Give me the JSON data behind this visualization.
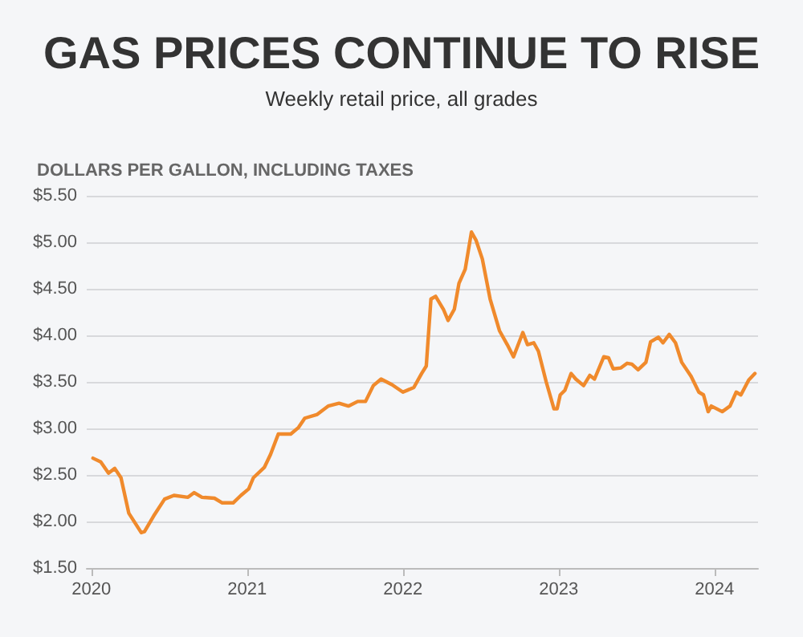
{
  "chart_data": {
    "type": "line",
    "title": "GAS PRICES CONTINUE TO RISE",
    "subtitle": "Weekly retail price, all grades",
    "ylabel": "DOLLARS PER GALLON, INCLUDING TAXES",
    "x": [
      2020.01,
      2020.06,
      2020.11,
      2020.15,
      2020.19,
      2020.24,
      2020.32,
      2020.34,
      2020.4,
      2020.47,
      2020.53,
      2020.62,
      2020.66,
      2020.71,
      2020.79,
      2020.84,
      2020.91,
      2020.96,
      2021.01,
      2021.04,
      2021.11,
      2021.15,
      2021.2,
      2021.28,
      2021.33,
      2021.37,
      2021.45,
      2021.52,
      2021.59,
      2021.65,
      2021.71,
      2021.76,
      2021.81,
      2021.86,
      2021.93,
      2022.0,
      2022.07,
      2022.12,
      2022.15,
      2022.18,
      2022.21,
      2022.26,
      2022.29,
      2022.33,
      2022.36,
      2022.4,
      2022.44,
      2022.47,
      2022.51,
      2022.56,
      2022.62,
      2022.67,
      2022.71,
      2022.77,
      2022.8,
      2022.84,
      2022.87,
      2022.92,
      2022.97,
      2022.99,
      2023.01,
      2023.04,
      2023.08,
      2023.11,
      2023.16,
      2023.2,
      2023.23,
      2023.29,
      2023.32,
      2023.35,
      2023.4,
      2023.44,
      2023.47,
      2023.51,
      2023.56,
      2023.59,
      2023.64,
      2023.67,
      2023.71,
      2023.75,
      2023.79,
      2023.85,
      2023.9,
      2023.93,
      2023.96,
      2023.98,
      2024.05,
      2024.1,
      2024.14,
      2024.17,
      2024.22,
      2024.26
    ],
    "series": [
      {
        "color": "#f08a2c",
        "values": [
          2.68,
          2.64,
          2.52,
          2.57,
          2.47,
          2.09,
          1.88,
          1.89,
          2.06,
          2.24,
          2.28,
          2.26,
          2.31,
          2.26,
          2.25,
          2.2,
          2.2,
          2.28,
          2.35,
          2.47,
          2.58,
          2.72,
          2.94,
          2.94,
          3.01,
          3.11,
          3.15,
          3.24,
          3.27,
          3.24,
          3.29,
          3.29,
          3.46,
          3.53,
          3.47,
          3.39,
          3.44,
          3.59,
          3.67,
          4.39,
          4.42,
          4.28,
          4.16,
          4.28,
          4.56,
          4.71,
          5.11,
          5.02,
          4.82,
          4.39,
          4.05,
          3.9,
          3.77,
          4.03,
          3.9,
          3.92,
          3.83,
          3.5,
          3.21,
          3.21,
          3.36,
          3.41,
          3.59,
          3.53,
          3.46,
          3.57,
          3.53,
          3.77,
          3.76,
          3.64,
          3.65,
          3.7,
          3.69,
          3.63,
          3.71,
          3.93,
          3.98,
          3.92,
          4.01,
          3.92,
          3.71,
          3.56,
          3.39,
          3.36,
          3.18,
          3.24,
          3.18,
          3.24,
          3.39,
          3.36,
          3.52,
          3.59
        ]
      }
    ],
    "xlim": [
      2019.97,
      2024.28
    ],
    "xticks": [
      2020,
      2021,
      2022,
      2023,
      2024
    ],
    "ylim": [
      1.5,
      5.5
    ],
    "yticks": [
      {
        "value": 1.5,
        "label": "$1.50"
      },
      {
        "value": 2,
        "label": "$2.00"
      },
      {
        "value": 2.5,
        "label": "$2.50"
      },
      {
        "value": 3,
        "label": "$3.00"
      },
      {
        "value": 3.5,
        "label": "$3.50"
      },
      {
        "value": 4,
        "label": "$4.00"
      },
      {
        "value": 4.5,
        "label": "$4.50"
      },
      {
        "value": 5,
        "label": "$5.00"
      },
      {
        "value": 5.5,
        "label": "$5.50"
      }
    ],
    "grid": "y",
    "marker": "none",
    "line_style": "solid"
  }
}
